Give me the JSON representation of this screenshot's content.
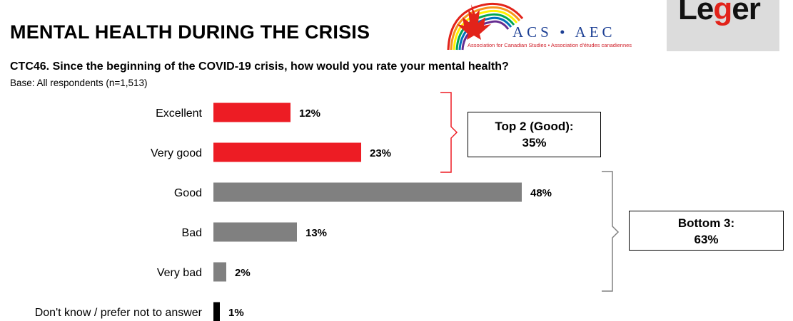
{
  "header": {
    "title": "MENTAL HEALTH DURING THE CRISIS",
    "question": "CTC46. Since the beginning of the COVID-19 crisis, how would you rate your mental health?",
    "base": "Base: All respondents (n=1,513)"
  },
  "logos": {
    "acs_name": "ACS • AEC",
    "acs_subtitle": "Association for Canadian Studies • Association d'études canadiennes",
    "leger_prefix": "Le",
    "leger_g": "g",
    "leger_suffix": "er"
  },
  "colors": {
    "positive": "#ed1c24",
    "neutral": "#808080",
    "dontknow": "#000000",
    "bracket_top": "#ed1c24",
    "bracket_bottom": "#808080"
  },
  "chart_data": {
    "type": "bar",
    "orientation": "horizontal",
    "categories": [
      "Excellent",
      "Very good",
      "Good",
      "Bad",
      "Very bad",
      "Don't know / prefer not to answer"
    ],
    "values": [
      12,
      23,
      48,
      13,
      2,
      1
    ],
    "value_labels": [
      "12%",
      "23%",
      "48%",
      "13%",
      "2%",
      "1%"
    ],
    "bar_colors": [
      "#ed1c24",
      "#ed1c24",
      "#808080",
      "#808080",
      "#808080",
      "#000000"
    ],
    "unit": "%",
    "xlim": [
      0,
      100
    ],
    "grid": false,
    "legend": "none"
  },
  "summary": {
    "top2_label": "Top 2 (Good):",
    "top2_value": "35%",
    "bottom3_label": "Bottom 3:",
    "bottom3_value": "63%"
  }
}
